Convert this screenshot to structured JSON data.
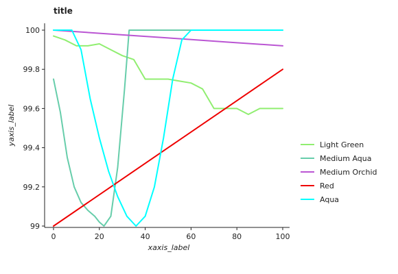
{
  "chart_data": {
    "type": "line",
    "title": "title",
    "xlabel": "xaxis_label",
    "ylabel": "yaxis_label",
    "xlim": [
      0,
      100
    ],
    "ylim": [
      99,
      100
    ],
    "xticks": [
      0,
      20,
      40,
      60,
      80,
      100
    ],
    "yticks": [
      99,
      99.2,
      99.4,
      99.6,
      99.8,
      100
    ],
    "xtick_labels": [
      "0",
      "20",
      "40",
      "60",
      "80",
      "100"
    ],
    "ytick_labels": [
      "99",
      "99.2",
      "99.4",
      "99.6",
      "99.8",
      "100"
    ],
    "grid": false,
    "legend_position": "right",
    "series": [
      {
        "name": "Light Green",
        "color": "#90ee70",
        "x": [
          0,
          5,
          10,
          15,
          20,
          25,
          30,
          35,
          40,
          45,
          50,
          55,
          60,
          65,
          70,
          75,
          80,
          85,
          90,
          95,
          100
        ],
        "y": [
          99.97,
          99.95,
          99.92,
          99.92,
          99.93,
          99.9,
          99.87,
          99.85,
          99.75,
          99.75,
          99.75,
          99.74,
          99.73,
          99.7,
          99.6,
          99.6,
          99.6,
          99.57,
          99.6,
          99.6,
          99.6
        ]
      },
      {
        "name": "Medium Aqua",
        "color": "#66cdaa",
        "x": [
          0,
          3,
          6,
          9,
          12,
          15,
          18,
          20,
          22,
          25,
          28,
          31,
          33,
          35,
          38,
          40,
          43,
          46,
          50,
          55,
          60,
          65,
          70,
          75,
          80,
          85,
          90,
          95,
          100
        ],
        "y": [
          99.75,
          99.58,
          99.35,
          99.2,
          99.12,
          99.08,
          99.05,
          99.02,
          99.0,
          99.05,
          99.3,
          99.7,
          100,
          100,
          100,
          100,
          100,
          100,
          100,
          100,
          100,
          100,
          100,
          100,
          100,
          100,
          100,
          100,
          100
        ]
      },
      {
        "name": "Medium Orchid",
        "color": "#ba55d3",
        "x": [
          0,
          25,
          50,
          75,
          100
        ],
        "y": [
          100,
          99.98,
          99.96,
          99.94,
          99.92
        ]
      },
      {
        "name": "Red",
        "color": "#ee0000",
        "x": [
          0,
          25,
          50,
          75,
          100
        ],
        "y": [
          99,
          99.2,
          99.4,
          99.6,
          99.8
        ]
      },
      {
        "name": "Aqua",
        "color": "#00ffff",
        "x": [
          0,
          4,
          8,
          12,
          16,
          20,
          24,
          28,
          32,
          36,
          40,
          44,
          48,
          52,
          56,
          60,
          64,
          68,
          72,
          76,
          80,
          85,
          90,
          95,
          100
        ],
        "y": [
          100,
          100,
          100,
          99.9,
          99.65,
          99.45,
          99.28,
          99.15,
          99.05,
          99.0,
          99.05,
          99.2,
          99.45,
          99.75,
          99.95,
          100,
          100,
          100,
          100,
          100,
          100,
          100,
          100,
          100,
          100
        ]
      }
    ]
  }
}
